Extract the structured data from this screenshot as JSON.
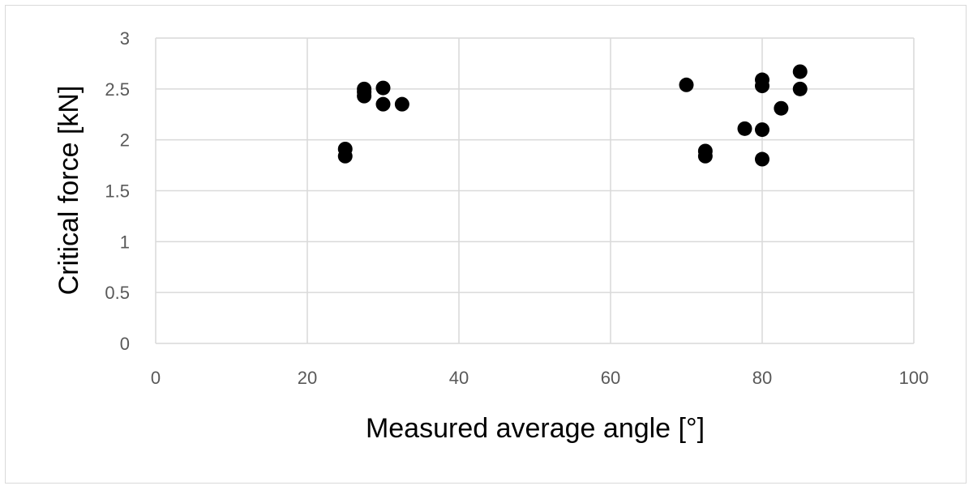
{
  "chart_data": {
    "type": "scatter",
    "title": "",
    "xlabel": "Measured average angle [°]",
    "ylabel": "Critical force [kN]",
    "xlim": [
      0,
      100
    ],
    "ylim": [
      0,
      3
    ],
    "x_ticks": [
      "0",
      "20",
      "40",
      "60",
      "80",
      "100"
    ],
    "y_ticks": [
      "0",
      "0.5",
      "1",
      "1.5",
      "2",
      "2.5",
      "3"
    ],
    "grid": true,
    "legend": "none",
    "marker_color": "#000000",
    "series": [
      {
        "points": [
          {
            "x": 25,
            "y": 1.91
          },
          {
            "x": 25,
            "y": 1.84
          },
          {
            "x": 27.5,
            "y": 2.5
          },
          {
            "x": 27.5,
            "y": 2.47
          },
          {
            "x": 27.5,
            "y": 2.43
          },
          {
            "x": 30,
            "y": 2.51
          },
          {
            "x": 30,
            "y": 2.35
          },
          {
            "x": 32.5,
            "y": 2.35
          },
          {
            "x": 70,
            "y": 2.54
          },
          {
            "x": 72.5,
            "y": 1.89
          },
          {
            "x": 72.5,
            "y": 1.84
          },
          {
            "x": 77.7,
            "y": 2.11
          },
          {
            "x": 80,
            "y": 2.59
          },
          {
            "x": 80,
            "y": 2.53
          },
          {
            "x": 80,
            "y": 2.1
          },
          {
            "x": 80,
            "y": 1.81
          },
          {
            "x": 82.5,
            "y": 2.31
          },
          {
            "x": 85,
            "y": 2.67
          },
          {
            "x": 85,
            "y": 2.5
          }
        ]
      }
    ]
  }
}
